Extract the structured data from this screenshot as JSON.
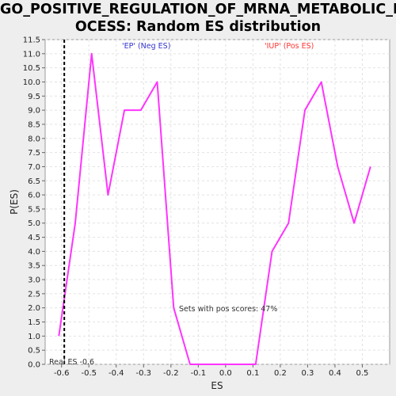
{
  "chart_data": {
    "type": "line",
    "title_line1": "GO_POSITIVE_REGULATION_OF_MRNA_METABOLIC_PR",
    "title_line2": "OCESS: Random ES distribution",
    "xlabel": "ES",
    "ylabel": "P(ES)",
    "xlim": [
      -0.66,
      0.6
    ],
    "ylim": [
      0,
      11.5
    ],
    "x_ticks": [
      "-0.6",
      "-0.5",
      "-0.4",
      "-0.3",
      "-0.2",
      "-0.1",
      "0.0",
      "0.1",
      "0.2",
      "0.3",
      "0.4",
      "0.5"
    ],
    "x_tick_values": [
      -0.6,
      -0.5,
      -0.4,
      -0.3,
      -0.2,
      -0.1,
      0.0,
      0.1,
      0.2,
      0.3,
      0.4,
      0.5
    ],
    "y_ticks": [
      "0.0",
      "0.5",
      "1.0",
      "1.5",
      "2.0",
      "2.5",
      "3.0",
      "3.5",
      "4.0",
      "4.5",
      "5.0",
      "5.5",
      "6.0",
      "6.5",
      "7.0",
      "7.5",
      "8.0",
      "8.5",
      "9.0",
      "9.5",
      "10.0",
      "10.5",
      "11.0",
      "11.5"
    ],
    "y_tick_values": [
      0,
      0.5,
      1,
      1.5,
      2,
      2.5,
      3,
      3.5,
      4,
      4.5,
      5,
      5.5,
      6,
      6.5,
      7,
      7.5,
      8,
      8.5,
      9,
      9.5,
      10,
      10.5,
      11,
      11.5
    ],
    "grid": true,
    "series": [
      {
        "color": "#ff33ff",
        "x": [
          -0.61,
          -0.55,
          -0.49,
          -0.43,
          -0.37,
          -0.31,
          -0.25,
          -0.19,
          -0.13,
          -0.07,
          -0.01,
          0.05,
          0.11,
          0.17,
          0.23,
          0.29,
          0.35,
          0.41,
          0.47,
          0.53
        ],
        "y": [
          1.0,
          5.0,
          11.0,
          6.0,
          9.0,
          9.0,
          10.0,
          2.0,
          0.0,
          0.0,
          0.0,
          0.0,
          0.0,
          4.0,
          5.0,
          9.0,
          10.0,
          7.0,
          5.0,
          7.0
        ]
      }
    ],
    "real_es": -0.59,
    "annotations": {
      "neg": "'EP' (Neg ES)",
      "pos": "'IUP' (Pos ES)",
      "pos_scores": "Sets with pos scores: 47%",
      "real_es": "Real ES -0.6"
    },
    "colors": {
      "neg": "#3333cc",
      "pos": "#ff3333",
      "line": "#ff33ff",
      "real_es": "#000000"
    }
  }
}
